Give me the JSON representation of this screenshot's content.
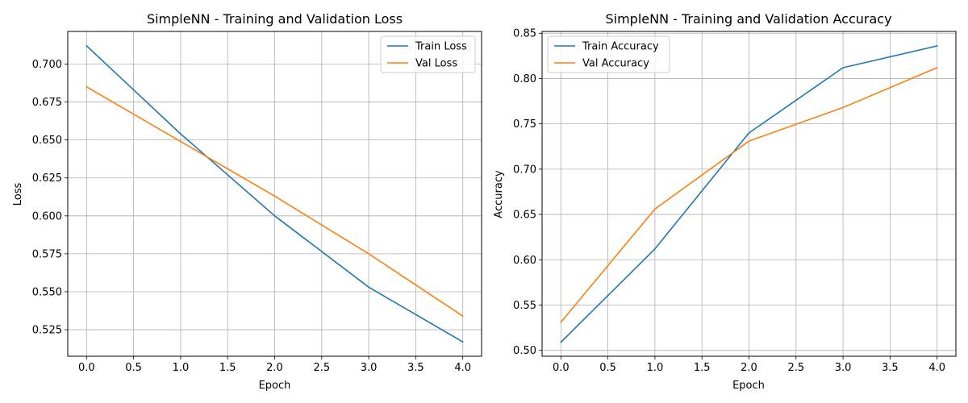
{
  "colors": {
    "train": "#1f77b4",
    "val": "#ff7f0e",
    "grid": "#b0b0b0",
    "axes": "#000000"
  },
  "chart_data": [
    {
      "type": "line",
      "title": "SimpleNN - Training and Validation Loss",
      "xlabel": "Epoch",
      "ylabel": "Loss",
      "grid": true,
      "legend_position": "top-right",
      "xlim": [
        -0.2,
        4.2
      ],
      "ylim": [
        0.5075,
        0.7215
      ],
      "xticks": [
        0.0,
        0.5,
        1.0,
        1.5,
        2.0,
        2.5,
        3.0,
        3.5,
        4.0
      ],
      "xtick_labels": [
        "0.0",
        "0.5",
        "1.0",
        "1.5",
        "2.0",
        "2.5",
        "3.0",
        "3.5",
        "4.0"
      ],
      "yticks": [
        0.525,
        0.55,
        0.575,
        0.6,
        0.625,
        0.65,
        0.675,
        0.7
      ],
      "ytick_labels": [
        "0.525",
        "0.550",
        "0.575",
        "0.600",
        "0.625",
        "0.650",
        "0.675",
        "0.700"
      ],
      "x": [
        0,
        1,
        2,
        3,
        4
      ],
      "series": [
        {
          "name": "Train Loss",
          "color": "#1f77b4",
          "values": [
            0.712,
            0.654,
            0.6,
            0.553,
            0.517
          ]
        },
        {
          "name": "Val Loss",
          "color": "#ff7f0e",
          "values": [
            0.685,
            0.649,
            0.613,
            0.575,
            0.534
          ]
        }
      ]
    },
    {
      "type": "line",
      "title": "SimpleNN - Training and Validation Accuracy",
      "xlabel": "Epoch",
      "ylabel": "Accuracy",
      "grid": true,
      "legend_position": "top-left",
      "xlim": [
        -0.2,
        4.2
      ],
      "ylim": [
        0.4935,
        0.852
      ],
      "xticks": [
        0.0,
        0.5,
        1.0,
        1.5,
        2.0,
        2.5,
        3.0,
        3.5,
        4.0
      ],
      "xtick_labels": [
        "0.0",
        "0.5",
        "1.0",
        "1.5",
        "2.0",
        "2.5",
        "3.0",
        "3.5",
        "4.0"
      ],
      "yticks": [
        0.5,
        0.55,
        0.6,
        0.65,
        0.7,
        0.75,
        0.8,
        0.85
      ],
      "ytick_labels": [
        "0.50",
        "0.55",
        "0.60",
        "0.65",
        "0.70",
        "0.75",
        "0.80",
        "0.85"
      ],
      "x": [
        0,
        1,
        2,
        3,
        4
      ],
      "series": [
        {
          "name": "Train Accuracy",
          "color": "#1f77b4",
          "values": [
            0.509,
            0.612,
            0.74,
            0.812,
            0.836
          ]
        },
        {
          "name": "Val Accuracy",
          "color": "#ff7f0e",
          "values": [
            0.531,
            0.656,
            0.731,
            0.768,
            0.812
          ]
        }
      ]
    }
  ]
}
